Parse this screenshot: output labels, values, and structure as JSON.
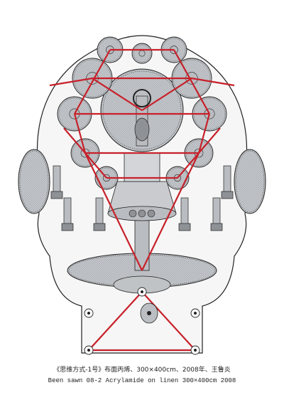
{
  "artwork": {
    "colors": {
      "background": "#ffffff",
      "head_fill": "#f6f6f6",
      "outline": "#222222",
      "metal": "#b9bcc0",
      "metal_dark": "#8e9296",
      "metal_light": "#dcdee0",
      "belt": "#c8202a"
    }
  },
  "caption": {
    "title_zh": "《思维方式-1号》布面丙烯、300×400cm、2008年、王鲁炎",
    "title_en": "Been sawn 08-2 Acrylamide on linen 300×400cm 2008"
  }
}
